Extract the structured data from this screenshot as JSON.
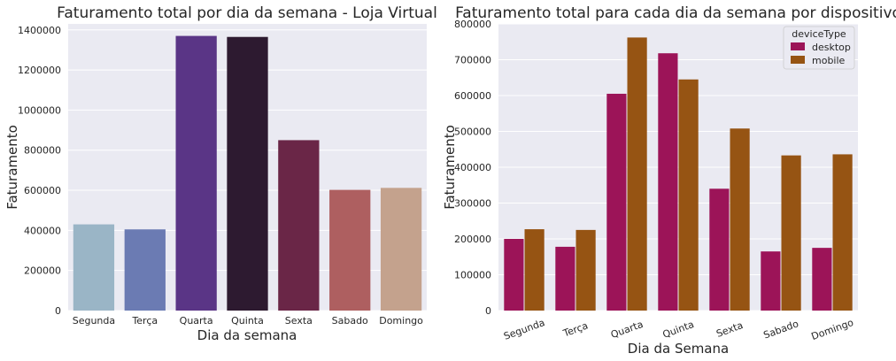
{
  "chart_data": [
    {
      "type": "bar",
      "title": "Faturamento total por dia da semana - Loja Virtual",
      "xlabel": "Dia da semana",
      "ylabel": "Faturamento",
      "categories": [
        "Segunda",
        "Terça",
        "Quarta",
        "Quinta",
        "Sexta",
        "Sabado",
        "Domingo"
      ],
      "values": [
        430000,
        405000,
        1370000,
        1365000,
        850000,
        602000,
        612000
      ],
      "ylim": [
        0,
        1430000
      ],
      "yticks": [
        0,
        200000,
        400000,
        600000,
        800000,
        1000000,
        1200000,
        1400000
      ],
      "colors": [
        "#9ab5c6",
        "#6b7bb3",
        "#5a3586",
        "#2d1a30",
        "#6a2647",
        "#ae5f60",
        "#c4a28d"
      ],
      "grid": true
    },
    {
      "type": "bar",
      "title": "Faturamento total para cada dia da semana por dispositivo",
      "xlabel": "Dia da Semana",
      "ylabel": "Faturamento",
      "categories": [
        "Segunda",
        "Terça",
        "Quarta",
        "Quinta",
        "Sexta",
        "Sabado",
        "Domingo"
      ],
      "series": [
        {
          "name": "desktop",
          "color": "#9c1458",
          "values": [
            200000,
            178000,
            605000,
            718000,
            340000,
            165000,
            175000
          ]
        },
        {
          "name": "mobile",
          "color": "#965413",
          "values": [
            227000,
            225000,
            762000,
            645000,
            508000,
            433000,
            436000
          ]
        }
      ],
      "ylim": [
        0,
        800000
      ],
      "yticks": [
        0,
        100000,
        200000,
        300000,
        400000,
        500000,
        600000,
        700000,
        800000
      ],
      "legend_title": "deviceType",
      "legend_position": "top-right",
      "xtick_rotation": 20,
      "grid": true
    }
  ]
}
